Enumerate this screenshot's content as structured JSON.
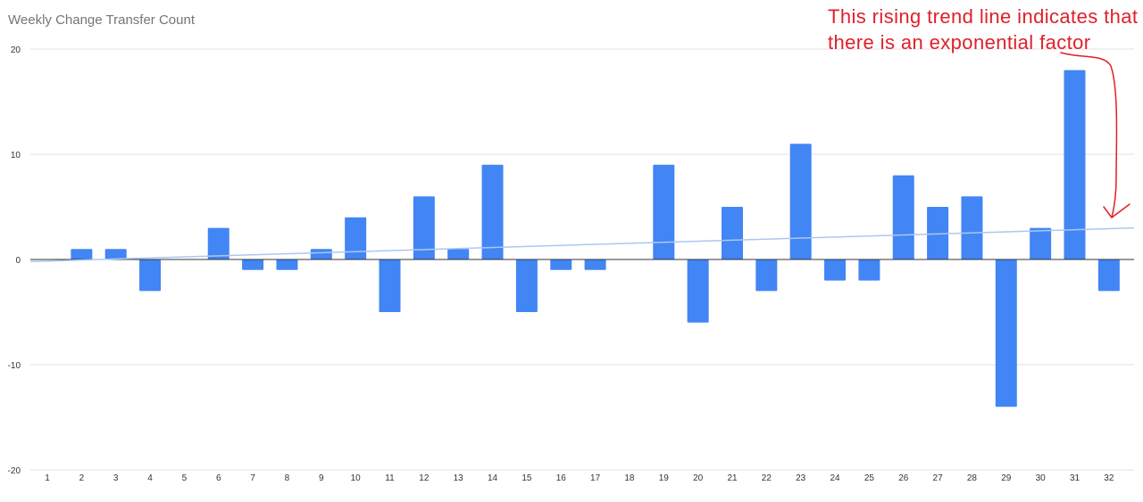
{
  "chart_data": {
    "type": "bar",
    "title": "Weekly Change Transfer Count",
    "xlabel": "",
    "ylabel": "",
    "categories": [
      "1",
      "2",
      "3",
      "4",
      "5",
      "6",
      "7",
      "8",
      "9",
      "10",
      "11",
      "12",
      "13",
      "14",
      "15",
      "16",
      "17",
      "18",
      "19",
      "20",
      "21",
      "22",
      "23",
      "24",
      "25",
      "26",
      "27",
      "28",
      "29",
      "30",
      "31",
      "32"
    ],
    "values": [
      0,
      1,
      1,
      -3,
      0,
      3,
      -1,
      -1,
      1,
      4,
      -5,
      6,
      1,
      9,
      -5,
      -1,
      -1,
      0,
      9,
      -6,
      5,
      -3,
      11,
      -2,
      -2,
      8,
      5,
      6,
      -14,
      3,
      18,
      -3
    ],
    "ylim": [
      -20,
      20
    ],
    "yticks": [
      20,
      10,
      0,
      -10,
      -20
    ],
    "trendline": {
      "type": "linear",
      "start": -0.2,
      "end": 3.0
    },
    "grid": true,
    "legend": "none",
    "colors": {
      "bar": "#4285f4",
      "trend": "#aac8f2",
      "grid": "#e0e0e0",
      "zero": "#333333",
      "annotation": "#e0202a"
    }
  },
  "annotation": {
    "line1": "This rising trend line indicates that",
    "line2": "there is an exponential factor"
  }
}
